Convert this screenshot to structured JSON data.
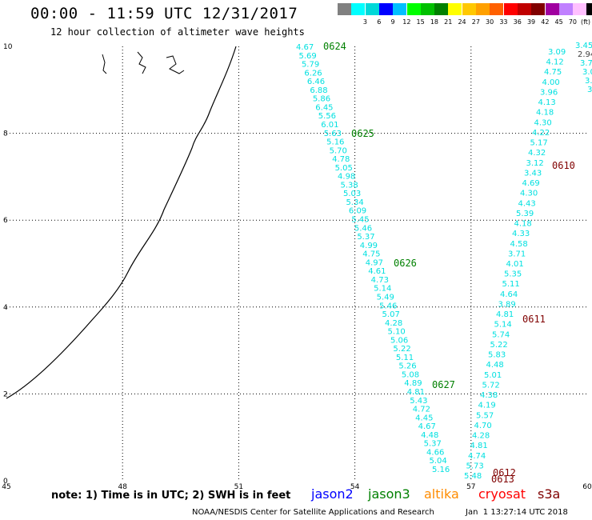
{
  "header": {
    "title": "00:00 - 11:59 UTC 12/31/2017",
    "subtitle": "12 hour collection of altimeter wave heights"
  },
  "legend": {
    "colors": [
      "#808080",
      "#00ffff",
      "#00d8d8",
      "#0000ff",
      "#00bfff",
      "#00ff00",
      "#00c000",
      "#008000",
      "#ffff00",
      "#ffc800",
      "#ffa000",
      "#ff6000",
      "#ff0000",
      "#c00000",
      "#800000",
      "#a000a0",
      "#c080ff",
      "#ffc0ff",
      "#000000"
    ],
    "labels": [
      "",
      "3",
      "6",
      "9",
      "12",
      "15",
      "18",
      "21",
      "24",
      "27",
      "30",
      "33",
      "36",
      "39",
      "42",
      "45",
      "70",
      ""
    ],
    "unit": "(ft)"
  },
  "axes": {
    "x_ticks": [
      "45",
      "48",
      "51",
      "54",
      "57",
      "60"
    ],
    "y_ticks": [
      "0",
      "2",
      "4",
      "6",
      "8",
      "10"
    ]
  },
  "map_labels": {
    "tracks": [
      {
        "pass": "A",
        "values": [
          "4.67",
          "5.69",
          "5.79",
          "6.26",
          "6.46",
          "6.88",
          "5.86",
          "6.45",
          "5.56",
          "6.01",
          "5.63",
          "5.16",
          "5.70",
          "4.78",
          "5.05",
          "4.98",
          "5.38",
          "5.03",
          "5.34",
          "6.09",
          "5.45",
          "5.46",
          "5.37",
          "4.99",
          "4.75",
          "4.97",
          "4.61",
          "4.73",
          "5.14",
          "5.49",
          "5.46",
          "5.07",
          "4.28",
          "5.10",
          "5.06",
          "5.22",
          "5.11",
          "5.26",
          "5.08",
          "4.89",
          "4.81",
          "5.43",
          "4.72",
          "4.45",
          "4.67",
          "4.48",
          "5.37",
          "4.66",
          "5.04",
          "5.16"
        ]
      },
      {
        "pass": "B",
        "values": [
          "3.09",
          "4.12",
          "4.75",
          "4.00",
          "3.96",
          "4.13",
          "4.18",
          "4.30",
          "4.22",
          "5.17",
          "4.32",
          "3.12",
          "3.43",
          "4.69",
          "4.30",
          "4.43",
          "5.39",
          "4.18",
          "4.33",
          "4.58",
          "3.71",
          "4.01",
          "5.35",
          "5.11",
          "4.64",
          "3.89",
          "4.81",
          "5.14",
          "5.74",
          "5.22",
          "5.83",
          "4.48",
          "5.01",
          "5.72",
          "4.38",
          "4.19",
          "5.57",
          "4.70",
          "4.28",
          "4.81",
          "4.74",
          "5.73",
          "5.48"
        ]
      },
      {
        "pass": "C",
        "values": [
          "3.45",
          "2.94",
          "3.7",
          "3.0",
          "3.",
          "3."
        ]
      }
    ],
    "time_labels": [
      {
        "text": "0624",
        "color": "#008000"
      },
      {
        "text": "0625",
        "color": "#008000"
      },
      {
        "text": "0626",
        "color": "#008000"
      },
      {
        "text": "0627",
        "color": "#008000"
      },
      {
        "text": "0610",
        "color": "#800000"
      },
      {
        "text": "0611",
        "color": "#800000"
      },
      {
        "text": "0612",
        "color": "#800000"
      },
      {
        "text": "0613",
        "color": "#800000"
      }
    ],
    "track_color": "#00e0e0"
  },
  "footer": {
    "note": "note: 1) Time is in UTC; 2) SWH is in feet",
    "satellites": [
      {
        "name": "jason2",
        "color": "#0000ff"
      },
      {
        "name": "jason3",
        "color": "#008000"
      },
      {
        "name": "altika",
        "color": "#ff8c00"
      },
      {
        "name": "cryosat",
        "color": "#ff0000"
      },
      {
        "name": "s3a",
        "color": "#800000"
      }
    ],
    "credit": "NOAA/NESDIS Center for Satellite Applications and Research",
    "timestamp": "Jan  1 13:27:14 UTC 2018"
  }
}
